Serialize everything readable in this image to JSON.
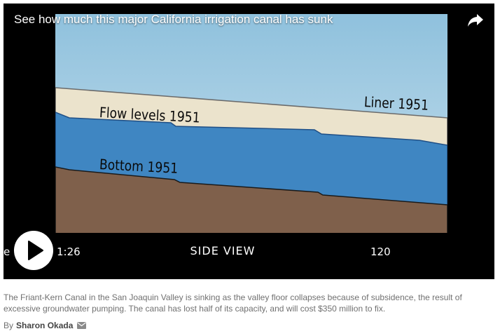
{
  "video": {
    "title": "See how much this major California irrigation canal has sunk",
    "duration": "1:26",
    "play_icon": "play-icon",
    "share_icon": "share-arrow-icon"
  },
  "diagram": {
    "labels": {
      "flow": "Flow levels 1951",
      "liner": "Liner 1951",
      "bottom": "Bottom 1951",
      "side_view": "SIDE VIEW",
      "milepost_start": "e 95",
      "milepost_end": "120"
    },
    "colors": {
      "sky_top": "#8fc1dd",
      "sky_bottom": "#cfe4ef",
      "liner": "#ebe3cc",
      "water": "#3f86c2",
      "ground": "#7f604b"
    }
  },
  "caption": {
    "text": "The Friant-Kern Canal in the San Joaquin Valley is sinking as the valley floor collapses because of subsidence, the result of excessive groundwater pumping. The canal has lost half of its capacity, and will cost $350 million to fix."
  },
  "byline": {
    "prefix": "By",
    "author": "Sharon Okada",
    "email_icon": "envelope-icon"
  }
}
